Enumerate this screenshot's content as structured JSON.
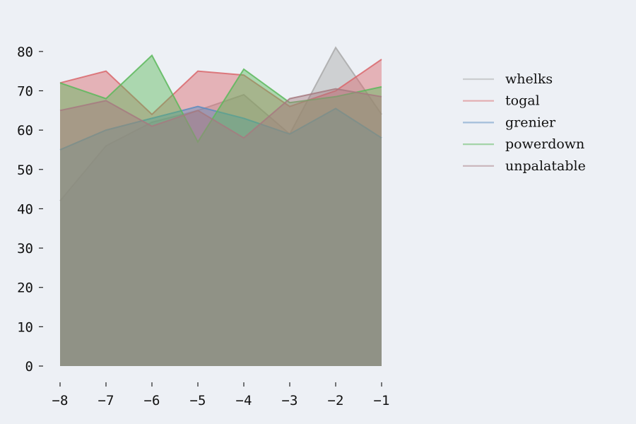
{
  "chart_data": {
    "type": "area",
    "x": [
      -8,
      -7,
      -6,
      -5,
      -4,
      -3,
      -2,
      -1
    ],
    "xticks": [
      "−8",
      "−7",
      "−6",
      "−5",
      "−4",
      "−3",
      "−2",
      "−1"
    ],
    "yticks": [
      "0",
      "10",
      "20",
      "30",
      "40",
      "50",
      "60",
      "70",
      "80"
    ],
    "ytick_values": [
      0,
      10,
      20,
      30,
      40,
      50,
      60,
      70,
      80
    ],
    "ylim": [
      0,
      85
    ],
    "xlim": [
      -8,
      -1
    ],
    "stacked": false,
    "grid": false,
    "legend_position": "right",
    "series": [
      {
        "name": "whelks",
        "color": "#a9a9a9",
        "values": [
          42,
          56,
          62,
          65,
          69,
          59,
          81,
          64
        ]
      },
      {
        "name": "togal",
        "color": "#d9676c",
        "values": [
          72,
          75,
          64,
          75,
          74,
          66,
          70,
          78
        ]
      },
      {
        "name": "grenier",
        "color": "#5b8cc0",
        "values": [
          55,
          60,
          63,
          66,
          63,
          59,
          65.5,
          58
        ]
      },
      {
        "name": "powerdown",
        "color": "#5cb85c",
        "values": [
          72,
          68,
          79,
          57,
          75.5,
          67,
          68.5,
          71
        ]
      },
      {
        "name": "unpalatable",
        "color": "#a67a80",
        "values": [
          65,
          67.5,
          61,
          65,
          58,
          68,
          70.5,
          68.5
        ]
      }
    ]
  }
}
